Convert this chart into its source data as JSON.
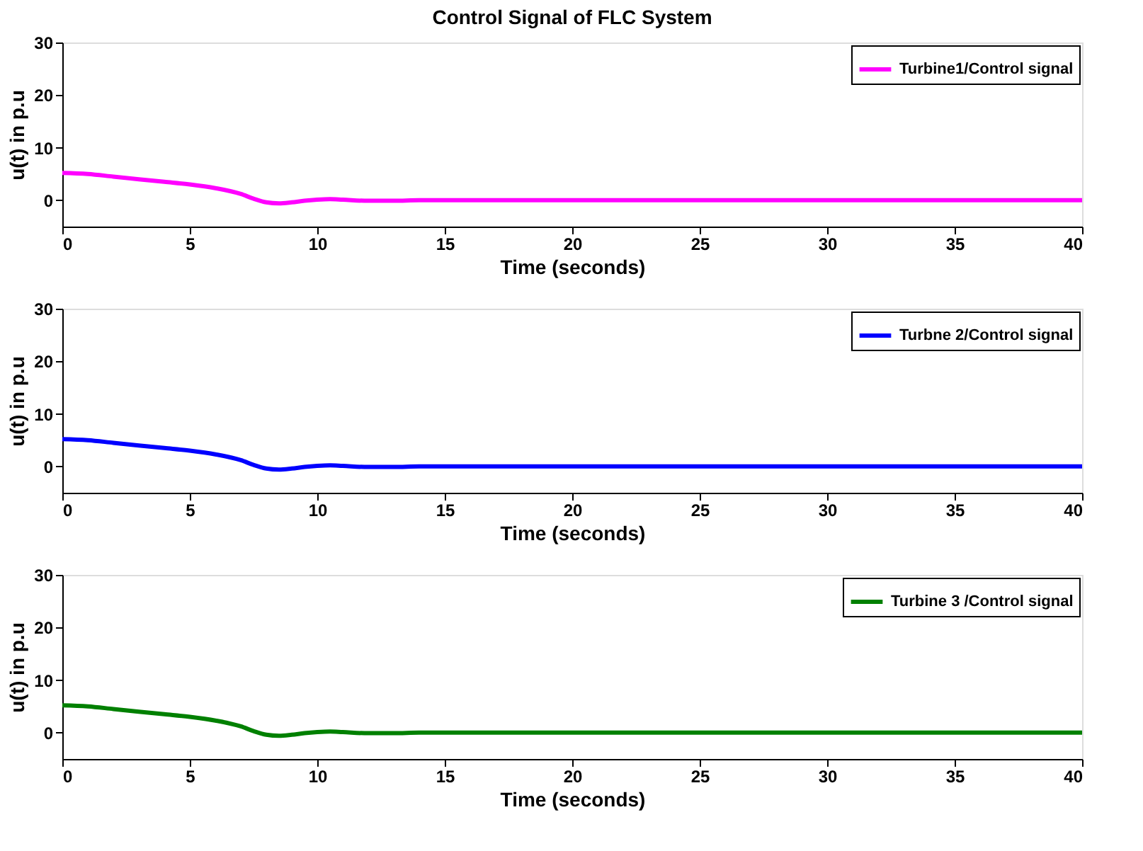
{
  "chart_data": [
    {
      "type": "line",
      "title": "Control Signal of FLC System",
      "xlabel": "Time (seconds)",
      "ylabel": "u(t) in p.u",
      "xlim": [
        0,
        40
      ],
      "ylim": [
        -5,
        30
      ],
      "xticks": [
        0,
        5,
        10,
        15,
        20,
        25,
        30,
        35,
        40
      ],
      "yticks": [
        0,
        10,
        20,
        30
      ],
      "grid": false,
      "legend": "top right",
      "line_style": "solid",
      "marker": "none",
      "x": [
        0,
        1,
        2,
        3,
        4,
        5,
        6,
        7,
        7.5,
        8,
        8.5,
        9,
        9.5,
        10,
        10.5,
        11,
        12,
        13,
        14,
        15,
        20,
        25,
        30,
        35,
        40
      ],
      "series": [
        {
          "name": "Turbine1/Control signal",
          "color": "#ff00ff",
          "values": [
            5.2,
            5.0,
            4.5,
            4.0,
            3.5,
            3.0,
            2.3,
            1.2,
            0.3,
            -0.4,
            -0.6,
            -0.4,
            -0.1,
            0.1,
            0.2,
            0.1,
            -0.1,
            -0.1,
            0,
            0,
            0,
            0,
            0,
            0,
            0
          ]
        }
      ]
    },
    {
      "type": "line",
      "xlabel": "Time (seconds)",
      "ylabel": "u(t) in p.u",
      "xlim": [
        0,
        40
      ],
      "ylim": [
        -5,
        30
      ],
      "xticks": [
        0,
        5,
        10,
        15,
        20,
        25,
        30,
        35,
        40
      ],
      "yticks": [
        0,
        10,
        20,
        30
      ],
      "grid": false,
      "legend": "top right",
      "line_style": "solid",
      "marker": "none",
      "x": [
        0,
        1,
        2,
        3,
        4,
        5,
        6,
        7,
        7.5,
        8,
        8.5,
        9,
        9.5,
        10,
        10.5,
        11,
        12,
        13,
        14,
        15,
        20,
        25,
        30,
        35,
        40
      ],
      "series": [
        {
          "name": "Turbne 2/Control signal",
          "color": "#0000ff",
          "values": [
            5.2,
            5.0,
            4.5,
            4.0,
            3.5,
            3.0,
            2.3,
            1.2,
            0.3,
            -0.4,
            -0.6,
            -0.4,
            -0.1,
            0.1,
            0.2,
            0.1,
            -0.1,
            -0.1,
            0,
            0,
            0,
            0,
            0,
            0,
            0
          ]
        }
      ]
    },
    {
      "type": "line",
      "xlabel": "Time (seconds)",
      "ylabel": "u(t) in p.u",
      "xlim": [
        0,
        40
      ],
      "ylim": [
        -5,
        30
      ],
      "xticks": [
        0,
        5,
        10,
        15,
        20,
        25,
        30,
        35,
        40
      ],
      "yticks": [
        0,
        10,
        20,
        30
      ],
      "grid": false,
      "legend": "top right",
      "line_style": "solid",
      "marker": "none",
      "x": [
        0,
        1,
        2,
        3,
        4,
        5,
        6,
        7,
        7.5,
        8,
        8.5,
        9,
        9.5,
        10,
        10.5,
        11,
        12,
        13,
        14,
        15,
        20,
        25,
        30,
        35,
        40
      ],
      "series": [
        {
          "name": "Turbine 3 /Control signal",
          "color": "#008000",
          "values": [
            5.2,
            5.0,
            4.5,
            4.0,
            3.5,
            3.0,
            2.3,
            1.2,
            0.3,
            -0.4,
            -0.6,
            -0.4,
            -0.1,
            0.1,
            0.2,
            0.1,
            -0.1,
            -0.1,
            0,
            0,
            0,
            0,
            0,
            0,
            0
          ]
        }
      ]
    }
  ]
}
